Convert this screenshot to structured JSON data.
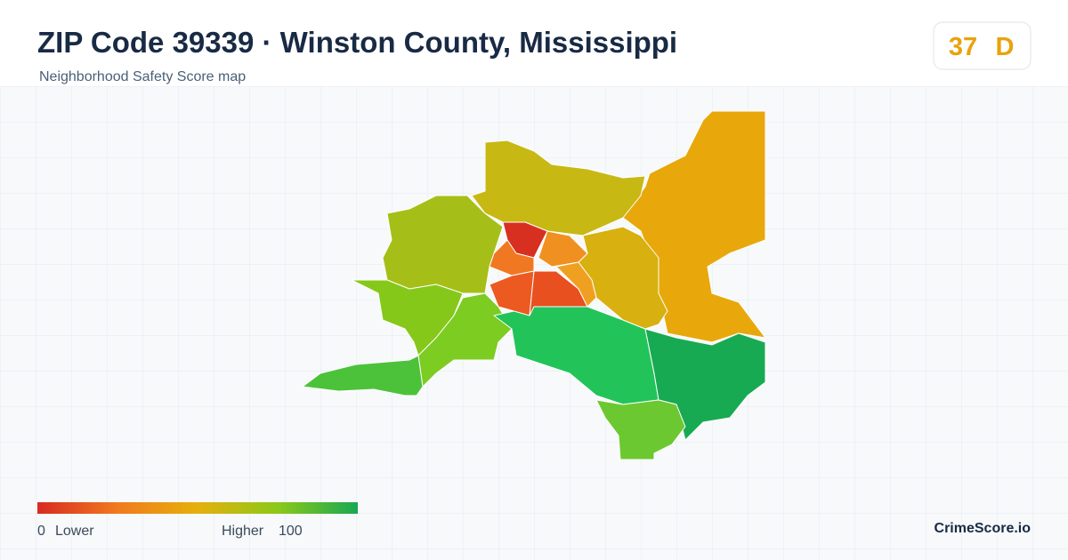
{
  "header": {
    "title": "ZIP Code 39339 · Winston County, Mississippi",
    "subtitle": "Neighborhood Safety Score map"
  },
  "score": {
    "value": "37",
    "grade": "D"
  },
  "legend": {
    "min": "0",
    "min_label": "Lower",
    "max_label": "Higher",
    "max": "100"
  },
  "brand": "CrimeScore.io"
}
